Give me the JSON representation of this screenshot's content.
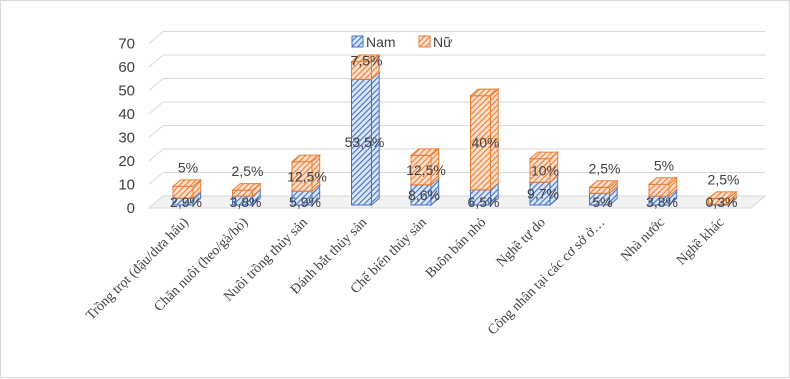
{
  "colors": {
    "male": "#4472c4",
    "male_light": "#dbe5f5",
    "female": "#ed7d31",
    "female_light": "#fbe0cf",
    "grid": "#d9d9d9",
    "text": "#404040"
  },
  "chart_data": {
    "type": "bar",
    "style": "3d-stacked-columns",
    "grid": true,
    "legend_position": "top",
    "ylim": [
      0,
      70
    ],
    "yticks": [
      "0",
      "10",
      "20",
      "30",
      "40",
      "50",
      "60",
      "70"
    ],
    "categories": [
      "Trồng trọt (đậu/dưa hấu)",
      "Chăn nuôi (heo/gà/bò)",
      "Nuôi trồng thủy sản",
      "Đánh bắt thủy sản",
      "Chế biến thủy sản",
      "Buôn bán nhỏ",
      "Nghề tự do",
      "Công nhân tại các cơ sở ở…",
      "Nhà nước",
      "Nghề khác"
    ],
    "series": [
      {
        "name": "Nam",
        "values": [
          2.9,
          3.8,
          5.9,
          53.5,
          8.6,
          6.5,
          9.7,
          5,
          3.8,
          0.3
        ],
        "labels": [
          "2,9%",
          "3,8%",
          "5,9%",
          "53,5%",
          "8,6%",
          "6,5%",
          "9,7%",
          "5%",
          "3,8%",
          "0,3%"
        ]
      },
      {
        "name": "Nữ",
        "values": [
          5,
          2.5,
          12.5,
          7.5,
          12.5,
          40,
          10,
          2.5,
          5,
          2.5
        ],
        "labels": [
          "5%",
          "2,5%",
          "12,5%",
          "7,5%",
          "12,5%",
          "40%",
          "10%",
          "2,5%",
          "5%",
          "2,5%"
        ]
      }
    ]
  }
}
